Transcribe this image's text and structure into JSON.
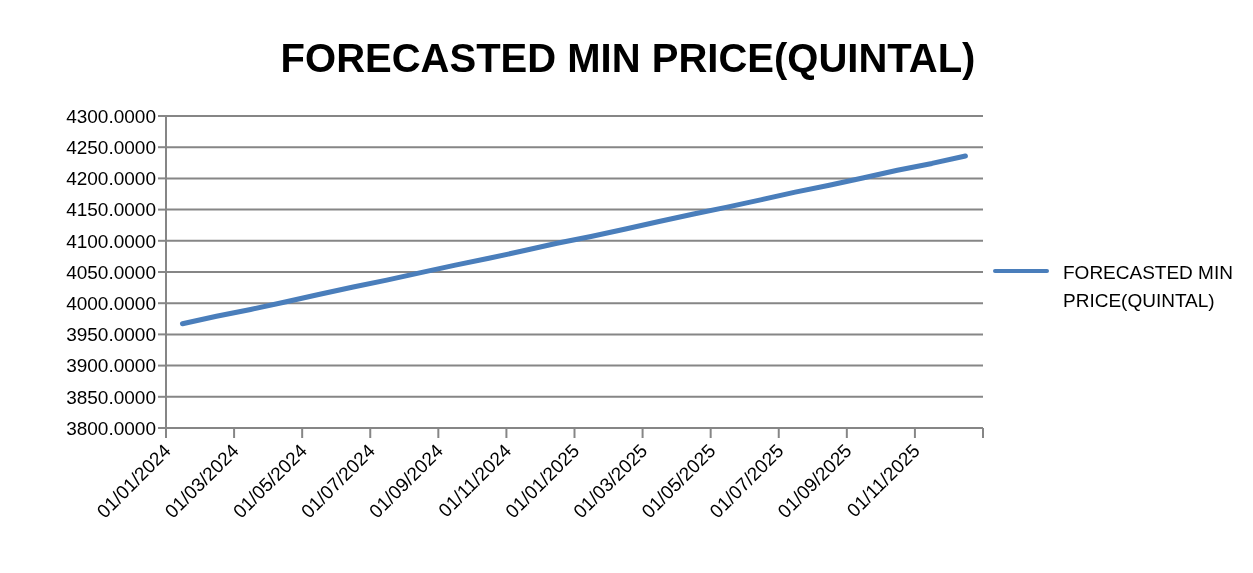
{
  "chart_data": {
    "type": "line",
    "title": "FORECASTED MIN PRICE(QUINTAL)",
    "x": [
      "2024-01-16",
      "2024-02-15",
      "2024-03-16",
      "2024-04-16",
      "2024-05-16",
      "2024-06-16",
      "2024-07-16",
      "2024-08-16",
      "2024-09-16",
      "2024-10-16",
      "2024-11-16",
      "2024-12-16",
      "2025-01-16",
      "2025-02-15",
      "2025-03-16",
      "2025-04-16",
      "2025-05-16",
      "2025-06-16",
      "2025-07-16",
      "2025-08-16",
      "2025-09-16",
      "2025-10-16",
      "2025-11-16",
      "2025-12-16"
    ],
    "series": [
      {
        "name": "FORECASTED MIN PRICE(QUINTAL)",
        "color": "#4a7ebb",
        "values": [
          3967,
          3979,
          3990,
          4002,
          4014,
          4026,
          4037,
          4049,
          4061,
          4072,
          4084,
          4096,
          4107,
          4119,
          4131,
          4143,
          4154,
          4166,
          4178,
          4189,
          4201,
          4213,
          4224,
          4236
        ]
      }
    ],
    "xlim": [
      "2024-01-01",
      "2026-01-01"
    ],
    "xticks": [
      {
        "value": "2024-01-01",
        "label": "01/01/2024"
      },
      {
        "value": "2024-03-01",
        "label": "01/03/2024"
      },
      {
        "value": "2024-05-01",
        "label": "01/05/2024"
      },
      {
        "value": "2024-07-01",
        "label": "01/07/2024"
      },
      {
        "value": "2024-09-01",
        "label": "01/09/2024"
      },
      {
        "value": "2024-11-01",
        "label": "01/11/2024"
      },
      {
        "value": "2025-01-01",
        "label": "01/01/2025"
      },
      {
        "value": "2025-03-01",
        "label": "01/03/2025"
      },
      {
        "value": "2025-05-01",
        "label": "01/05/2025"
      },
      {
        "value": "2025-07-01",
        "label": "01/07/2025"
      },
      {
        "value": "2025-09-01",
        "label": "01/09/2025"
      },
      {
        "value": "2025-11-01",
        "label": "01/11/2025"
      },
      {
        "value": "2026-01-01",
        "label": null
      }
    ],
    "ylim": [
      3800,
      4300
    ],
    "yticks": [
      {
        "value": 3800,
        "label": "3800.0000"
      },
      {
        "value": 3850,
        "label": "3850.0000"
      },
      {
        "value": 3900,
        "label": "3900.0000"
      },
      {
        "value": 3950,
        "label": "3950.0000"
      },
      {
        "value": 4000,
        "label": "4000.0000"
      },
      {
        "value": 4050,
        "label": "4050.0000"
      },
      {
        "value": 4100,
        "label": "4100.0000"
      },
      {
        "value": 4150,
        "label": "4150.0000"
      },
      {
        "value": 4200,
        "label": "4200.0000"
      },
      {
        "value": 4250,
        "label": "4250.0000"
      },
      {
        "value": 4300,
        "label": "4300.0000"
      }
    ],
    "grid": "y",
    "legend": "right",
    "marker": "none",
    "line_style": "solid"
  }
}
